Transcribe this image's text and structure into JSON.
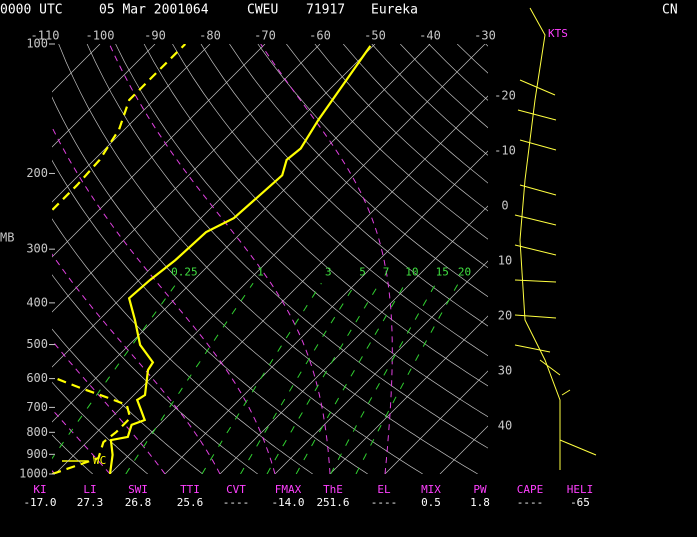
{
  "header": {
    "time": "0000 UTC",
    "date": "05 Mar 2001064",
    "station_id": "CWEU",
    "station_number": "71917",
    "station_name": "Eureka",
    "country": "CN"
  },
  "chart_data": {
    "type": "skewt",
    "y_label": "MB",
    "wind_units": "KTS",
    "legend_label": "WC",
    "ylim": [
      1000,
      100
    ],
    "log_y": true,
    "yticks": [
      100,
      200,
      300,
      400,
      500,
      600,
      700,
      800,
      900,
      1000
    ],
    "xticks": [
      -110,
      -100,
      -90,
      -80,
      -70,
      -60,
      -50,
      -40,
      -30,
      -20,
      -10,
      0,
      10,
      20,
      30,
      40
    ],
    "mixing_ratio_ticks": [
      0.25,
      1,
      3,
      5,
      7,
      10,
      15,
      20
    ],
    "series": [
      {
        "color": "#ffff00",
        "style": "solid",
        "pressure": [
          1000,
          903,
          834,
          820,
          769,
          749,
          710,
          673,
          655,
          573,
          550,
          501,
          438,
          390,
          354,
          318,
          274,
          254,
          202,
          186,
          175,
          150,
          101
        ],
        "values": [
          -20,
          -23,
          -26,
          -23.5,
          -25,
          -23.5,
          -26,
          -28.5,
          -28,
          -32,
          -32.5,
          -38,
          -43.5,
          -48.5,
          -48,
          -47,
          -46.5,
          -44,
          -43,
          -45,
          -44.5,
          -46.5,
          -50.5
        ]
      },
      {
        "color": "#ffff00",
        "style": "dashed",
        "pressure": [
          1000,
          918,
          843,
          799,
          741,
          691,
          666,
          631,
          598,
          null,
          243,
          213,
          186,
          158,
          135,
          115,
          100
        ],
        "values": [
          -30.5,
          -25,
          -27,
          -26.5,
          -26.5,
          -29.5,
          -34,
          -41,
          -47.5,
          null,
          -78.5,
          -78.5,
          -79,
          -81,
          -84.5,
          -84.5,
          -84.5
        ]
      }
    ]
  },
  "indices": [
    {
      "label": "KI",
      "value": "-17.0"
    },
    {
      "label": "LI",
      "value": "27.3"
    },
    {
      "label": "SWI",
      "value": "26.8"
    },
    {
      "label": "TTI",
      "value": "25.6"
    },
    {
      "label": "CVT",
      "value": "----"
    },
    {
      "label": "FMAX",
      "value": "-14.0"
    },
    {
      "label": "ThE",
      "value": "251.6"
    },
    {
      "label": "EL",
      "value": "----"
    },
    {
      "label": "MIX",
      "value": "0.5"
    },
    {
      "label": "PW",
      "value": "1.8"
    },
    {
      "label": "CAPE",
      "value": "----"
    },
    {
      "label": "HELI",
      "value": "-65"
    }
  ]
}
